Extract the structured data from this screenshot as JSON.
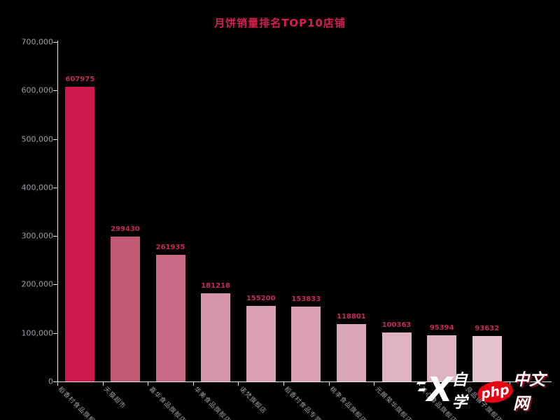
{
  "title": {
    "text": "月饼销量排名TOP10店铺",
    "color": "#d81e4e"
  },
  "chart_data": {
    "type": "bar",
    "title": "月饼销量排名TOP10店铺",
    "categories": [
      "稻香村食品旗舰店",
      "天猫超市",
      "嘉华食品旗舰店",
      "华美食品旗舰店",
      "诺梵旗舰店",
      "稻香村食品专营店",
      "桃李食品旗舰店",
      "元朗荣华旗舰店",
      "美心食品旗舰店",
      "良品铺子旗舰店"
    ],
    "values": [
      607975,
      299430,
      261935,
      181218,
      155200,
      153833,
      118801,
      100363,
      95394,
      93632
    ],
    "value_labels": [
      "607975",
      "299430",
      "261935",
      "181218",
      "155200",
      "153833",
      "118801",
      "100363",
      "95394",
      "93632"
    ],
    "bar_colors": [
      "#cb1b4d",
      "#c25873",
      "#c96a85",
      "#d795aa",
      "#d99fb2",
      "#d99fb2",
      "#dba8b9",
      "#dfb3c1",
      "#dfb3c1",
      "#e4c3ce"
    ],
    "xlabel": "",
    "ylabel": "",
    "ylim": [
      0,
      700000
    ],
    "y_ticks": [
      "0",
      "100,000",
      "200,000",
      "300,000",
      "400,000",
      "500,000",
      "600,000",
      "700,000"
    ],
    "grid": "off",
    "legend": "none",
    "background_color": "#000000",
    "value_label_color": "#c22c52",
    "axis_line_color": "#e6e6e6",
    "tick_label_color": "#9aa0a6"
  },
  "watermark": {
    "x_logo": "X",
    "prefix": "自学",
    "brand": "php",
    "suffix": "中文网",
    "ellipse_color": "#e60012"
  }
}
